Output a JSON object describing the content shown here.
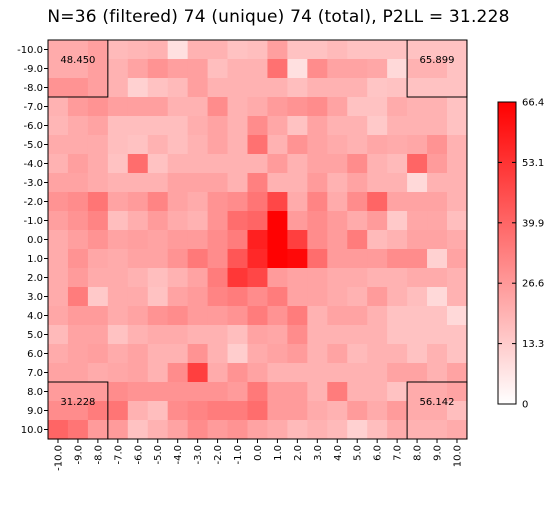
{
  "title": "N=36 (filtered) 74 (unique) 74 (total), P2LL = 31.228",
  "chart_data": {
    "type": "heatmap",
    "title": "N=36 (filtered) 74 (unique) 74 (total), P2LL = 31.228",
    "x_ticks": [
      "-10.0",
      "-9.0",
      "-8.0",
      "-7.0",
      "-6.0",
      "-5.0",
      "-4.0",
      "-3.0",
      "-2.0",
      "-1.0",
      "0.0",
      "1.0",
      "2.0",
      "3.0",
      "4.0",
      "5.0",
      "6.0",
      "7.0",
      "8.0",
      "9.0",
      "10.0"
    ],
    "y_ticks": [
      "-10.0",
      "-9.0",
      "-8.0",
      "-7.0",
      "-6.0",
      "-5.0",
      "-4.0",
      "-3.0",
      "-2.0",
      "-1.0",
      "0.0",
      "1.0",
      "2.0",
      "3.0",
      "4.0",
      "5.0",
      "6.0",
      "7.0",
      "8.0",
      "9.0",
      "10.0"
    ],
    "colorbar": {
      "min": 0,
      "max": 66.4,
      "ticks": [
        "66.4",
        "53.1",
        "39.9",
        "26.6",
        "13.3",
        "0"
      ],
      "low_color": "#ffffff",
      "high_color": "#ff0000"
    },
    "corner_values": {
      "top_left": "48.450",
      "top_right": "65.899",
      "bottom_left": "31.228",
      "bottom_right": "56.142"
    },
    "values": [
      [
        22,
        22,
        25,
        18,
        19,
        20,
        8,
        20,
        20,
        16,
        17,
        25,
        16,
        16,
        18,
        16,
        16,
        16,
        16,
        16,
        16
      ],
      [
        22,
        22,
        25,
        20,
        24,
        28,
        25,
        25,
        17,
        20,
        20,
        37,
        8,
        30,
        24,
        24,
        23,
        10,
        20,
        20,
        16
      ],
      [
        28,
        28,
        25,
        20,
        12,
        16,
        18,
        25,
        20,
        20,
        20,
        20,
        17,
        20,
        20,
        20,
        15,
        16,
        16,
        16,
        16
      ],
      [
        20,
        26,
        28,
        25,
        25,
        25,
        20,
        20,
        30,
        20,
        22,
        26,
        28,
        30,
        24,
        16,
        16,
        22,
        20,
        20,
        16
      ],
      [
        19,
        22,
        24,
        17,
        17,
        17,
        17,
        21,
        24,
        20,
        30,
        23,
        16,
        24,
        20,
        20,
        14,
        20,
        20,
        20,
        16
      ],
      [
        22,
        22,
        22,
        17,
        16,
        20,
        17,
        20,
        24,
        20,
        37,
        20,
        28,
        24,
        22,
        20,
        23,
        22,
        23,
        28,
        20
      ],
      [
        20,
        25,
        22,
        16,
        38,
        16,
        20,
        20,
        20,
        20,
        20,
        26,
        20,
        24,
        24,
        30,
        20,
        18,
        40,
        26,
        20
      ],
      [
        24,
        24,
        22,
        20,
        20,
        20,
        24,
        24,
        24,
        20,
        33,
        20,
        20,
        26,
        20,
        24,
        20,
        20,
        10,
        20,
        20
      ],
      [
        28,
        30,
        36,
        24,
        26,
        32,
        24,
        22,
        28,
        30,
        36,
        48,
        22,
        32,
        22,
        30,
        40,
        24,
        24,
        24,
        20
      ],
      [
        25,
        28,
        32,
        17,
        21,
        26,
        22,
        20,
        28,
        38,
        40,
        66,
        26,
        30,
        26,
        22,
        26,
        14,
        23,
        23,
        17
      ],
      [
        22,
        25,
        28,
        24,
        25,
        24,
        26,
        26,
        30,
        34,
        58,
        66,
        50,
        30,
        26,
        34,
        18,
        20,
        24,
        24,
        22
      ],
      [
        22,
        28,
        23,
        22,
        24,
        24,
        28,
        35,
        30,
        44,
        56,
        66,
        64,
        38,
        26,
        26,
        26,
        30,
        30,
        12,
        24
      ],
      [
        22,
        26,
        22,
        22,
        20,
        17,
        20,
        24,
        34,
        52,
        48,
        26,
        24,
        24,
        22,
        22,
        20,
        20,
        22,
        22,
        20
      ],
      [
        22,
        34,
        14,
        22,
        22,
        16,
        24,
        26,
        32,
        34,
        30,
        34,
        24,
        24,
        22,
        20,
        26,
        20,
        17,
        10,
        20
      ],
      [
        23,
        26,
        26,
        22,
        24,
        28,
        30,
        26,
        26,
        28,
        34,
        28,
        34,
        20,
        24,
        24,
        20,
        16,
        16,
        16,
        10
      ],
      [
        18,
        24,
        24,
        16,
        20,
        22,
        22,
        20,
        20,
        17,
        24,
        23,
        30,
        20,
        20,
        20,
        20,
        16,
        16,
        16,
        16
      ],
      [
        22,
        24,
        25,
        22,
        24,
        20,
        20,
        28,
        20,
        13,
        22,
        24,
        26,
        20,
        24,
        18,
        20,
        20,
        16,
        20,
        16
      ],
      [
        24,
        24,
        22,
        23,
        24,
        20,
        30,
        50,
        22,
        28,
        24,
        20,
        20,
        20,
        20,
        20,
        20,
        24,
        24,
        20,
        24
      ],
      [
        26,
        26,
        26,
        30,
        28,
        28,
        28,
        28,
        28,
        26,
        35,
        26,
        26,
        20,
        34,
        20,
        20,
        16,
        22,
        22,
        24
      ],
      [
        30,
        30,
        34,
        36,
        20,
        17,
        30,
        32,
        34,
        34,
        38,
        26,
        26,
        22,
        20,
        26,
        22,
        26,
        22,
        22,
        17
      ],
      [
        40,
        36,
        26,
        26,
        16,
        20,
        24,
        30,
        26,
        28,
        24,
        22,
        18,
        20,
        18,
        12,
        17,
        22,
        20,
        20,
        22
      ]
    ]
  }
}
